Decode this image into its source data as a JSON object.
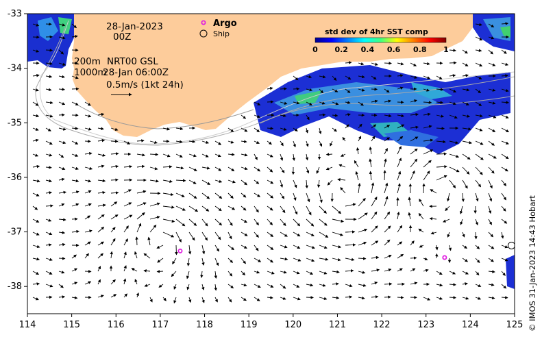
{
  "map": {
    "date_line": "28-Jan-2023",
    "time_line": "00Z",
    "depth_200": "200m",
    "depth_1000": "1000m",
    "product": "NRT00 GSL",
    "product_time": "28-Jan 06:00Z",
    "scale_label": "0.5m/s (1kt 24h)",
    "credit": "© IMOS 31-Jan-2023 14:43 Hobart",
    "x_ticks": [
      "114",
      "115",
      "116",
      "117",
      "118",
      "119",
      "120",
      "121",
      "122",
      "123",
      "124",
      "125"
    ],
    "y_ticks": [
      "-33",
      "-34",
      "-35",
      "-36",
      "-37",
      "-38"
    ],
    "lon_range": [
      114,
      125
    ],
    "lat_range": [
      -38.5,
      -33
    ]
  },
  "legend": {
    "argo_label": "Argo",
    "ship_label": "Ship",
    "argo_color": "#e020e0",
    "ship_color": "#000000"
  },
  "colorbar": {
    "title": "std dev of 4hr SST comp",
    "ticks": [
      "0",
      "0.2",
      "0.4",
      "0.6",
      "0.8",
      "1"
    ],
    "colormap": "jet"
  },
  "land_color": "#fdcc9b",
  "argo_floats": [
    {
      "lon": 117.45,
      "lat": -37.35
    },
    {
      "lon": 123.42,
      "lat": -37.47
    }
  ],
  "ships": [
    {
      "lon": 124.93,
      "lat": -37.25
    }
  ]
}
